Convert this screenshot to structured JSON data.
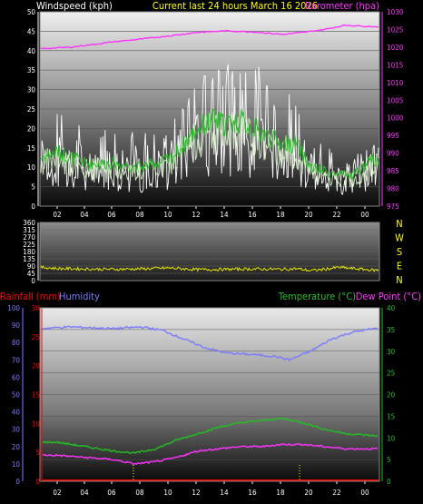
{
  "header": {
    "left_title": "Windspeed (kph)",
    "center_title": "Current last 24 hours March 16 2026",
    "right_title": "Barometer (hpa)"
  },
  "bottom_header": {
    "rainfall_label": "Rainfall (mm)",
    "humidity_label": "Humidity",
    "temperature_label": "Temperature (°C)",
    "dewpoint_label": "Dew Point (°C)"
  },
  "x_axis_labels": [
    "02",
    "04",
    "06",
    "08",
    "10",
    "12",
    "14",
    "16",
    "18",
    "20",
    "22",
    "00"
  ],
  "compass_labels": [
    "N",
    "W",
    "S",
    "E",
    "N"
  ],
  "colors": {
    "wind_speed": "#ffffff",
    "wind_gust": "#ffffff",
    "wind_avg_light": "#cfe8c0",
    "wind_avg": "#22c022",
    "barometer": "#ff33ff",
    "direction": "#e6e600",
    "humidity": "#7b7bff",
    "temperature": "#22c022",
    "dewpoint": "#ff33ff",
    "rain": "#ff0000",
    "title_yellow": "#ffff00"
  },
  "chart_data": [
    {
      "type": "line",
      "title": "Current last 24 hours March 16 2026",
      "ylabel": "Windspeed (kph)",
      "ylim": [
        0,
        50
      ],
      "y_ticks": [
        0,
        5,
        10,
        15,
        20,
        25,
        30,
        35,
        40,
        45,
        50
      ],
      "y2label": "Barometer (hpa)",
      "y2lim": [
        975,
        1030
      ],
      "y2_ticks": [
        975,
        980,
        985,
        990,
        995,
        1000,
        1005,
        1010,
        1015,
        1020,
        1025,
        1030
      ],
      "x_ticks": [
        "02",
        "04",
        "06",
        "08",
        "10",
        "12",
        "14",
        "16",
        "18",
        "20",
        "22",
        "00"
      ],
      "series": [
        {
          "name": "Barometer (hpa)",
          "axis": "right",
          "x": [
            "00:30",
            "03:00",
            "06:00",
            "08:30",
            "10:00",
            "12:00",
            "14:00",
            "16:00",
            "18:00",
            "19:30",
            "21:00",
            "22:30",
            "00:30"
          ],
          "values": [
            1019.5,
            1020.0,
            1021.5,
            1022.5,
            1023.2,
            1024.2,
            1024.6,
            1024.3,
            1023.6,
            1024.2,
            1025.0,
            1026.2,
            1025.8
          ]
        },
        {
          "name": "Windspeed (kph) gust",
          "axis": "left",
          "x": [
            "00:30",
            "02:00",
            "04:00",
            "06:00",
            "08:00",
            "10:00",
            "11:00",
            "12:00",
            "13:00",
            "14:00",
            "15:00",
            "16:00",
            "17:00",
            "18:00",
            "19:00",
            "20:00",
            "21:00",
            "22:00",
            "23:00",
            "00:30"
          ],
          "values": [
            20,
            24,
            21,
            20,
            19,
            21,
            28,
            32,
            38,
            36,
            40,
            38,
            34,
            28,
            30,
            18,
            16,
            14,
            13,
            16
          ]
        },
        {
          "name": "Windspeed (kph) average",
          "axis": "left",
          "x": [
            "00:30",
            "02:00",
            "04:00",
            "06:00",
            "08:00",
            "10:00",
            "11:00",
            "12:00",
            "13:00",
            "14:00",
            "15:00",
            "16:00",
            "17:00",
            "18:00",
            "19:00",
            "20:00",
            "21:00",
            "22:00",
            "23:00",
            "00:30"
          ],
          "values": [
            12,
            14,
            11,
            11,
            10,
            12,
            16,
            20,
            22,
            21,
            22,
            20,
            18,
            16,
            16,
            10,
            9,
            8,
            8,
            12
          ]
        }
      ]
    },
    {
      "type": "line",
      "ylabel": "Wind direction",
      "ylim": [
        0,
        360
      ],
      "y_ticks": [
        0,
        45,
        90,
        135,
        180,
        225,
        270,
        315,
        360
      ],
      "y_tick_labels": [
        "0",
        "45",
        "90",
        "135",
        "180",
        "225",
        "270",
        "315",
        "360"
      ],
      "series": [
        {
          "name": "Wind direction",
          "x": [
            "00:30",
            "02:00",
            "04:00",
            "06:00",
            "08:00",
            "10:00",
            "12:00",
            "14:00",
            "16:00",
            "18:00",
            "19:00",
            "20:00",
            "21:00",
            "22:00",
            "23:00",
            "00:30"
          ],
          "values": [
            85,
            75,
            72,
            70,
            73,
            78,
            68,
            70,
            72,
            70,
            74,
            62,
            70,
            82,
            75,
            65
          ]
        }
      ]
    },
    {
      "type": "line",
      "ylabel_left_outer": "Humidity",
      "ylim_left_outer": [
        0,
        100
      ],
      "y_ticks_left_outer": [
        0,
        10,
        20,
        30,
        40,
        50,
        60,
        70,
        80,
        90,
        100
      ],
      "ylabel_left_inner": "Rainfall (mm)",
      "ylim_left_inner": [
        0,
        30
      ],
      "y_ticks_left_inner": [
        0,
        5,
        10,
        15,
        20,
        25,
        30
      ],
      "ylabel_right": "Temperature (°C) Dew Point (°C)",
      "ylim_right": [
        0,
        40
      ],
      "y_ticks_right": [
        0,
        5,
        10,
        15,
        20,
        25,
        30,
        35,
        40
      ],
      "x_ticks": [
        "02",
        "04",
        "06",
        "08",
        "10",
        "12",
        "14",
        "16",
        "18",
        "20",
        "22",
        "00"
      ],
      "series": [
        {
          "name": "Humidity",
          "axis": "left_outer",
          "x": [
            "00:30",
            "03:00",
            "06:00",
            "08:00",
            "09:30",
            "11:00",
            "12:30",
            "14:00",
            "16:00",
            "17:30",
            "18:30",
            "20:00",
            "21:30",
            "23:00",
            "00:30"
          ],
          "values": [
            88,
            89,
            88,
            89,
            87,
            82,
            77,
            74,
            73,
            72,
            70,
            75,
            82,
            86,
            88
          ]
        },
        {
          "name": "Temperature (°C)",
          "axis": "right",
          "x": [
            "00:30",
            "02:00",
            "04:00",
            "06:00",
            "07:30",
            "09:00",
            "10:30",
            "12:00",
            "13:30",
            "15:00",
            "16:30",
            "18:00",
            "19:30",
            "21:00",
            "22:30",
            "00:30"
          ],
          "values": [
            9,
            9,
            8,
            7,
            6.5,
            7.5,
            9.5,
            11,
            12.5,
            13.5,
            14,
            14.5,
            13.5,
            12,
            11,
            10.5
          ]
        },
        {
          "name": "Dew Point (°C)",
          "axis": "right",
          "x": [
            "00:30",
            "02:00",
            "04:00",
            "06:00",
            "07:30",
            "09:00",
            "10:30",
            "12:00",
            "13:30",
            "15:00",
            "16:30",
            "18:00",
            "19:30",
            "21:00",
            "22:30",
            "00:30"
          ],
          "values": [
            6,
            6,
            5.5,
            5,
            4,
            4.5,
            5.5,
            7,
            7.5,
            8,
            8,
            8.5,
            8.5,
            8,
            7.5,
            7.5
          ]
        },
        {
          "name": "Rainfall (mm)",
          "axis": "left_inner",
          "x": [
            "00:30",
            "00:30"
          ],
          "values": [
            0,
            0
          ]
        }
      ]
    }
  ]
}
